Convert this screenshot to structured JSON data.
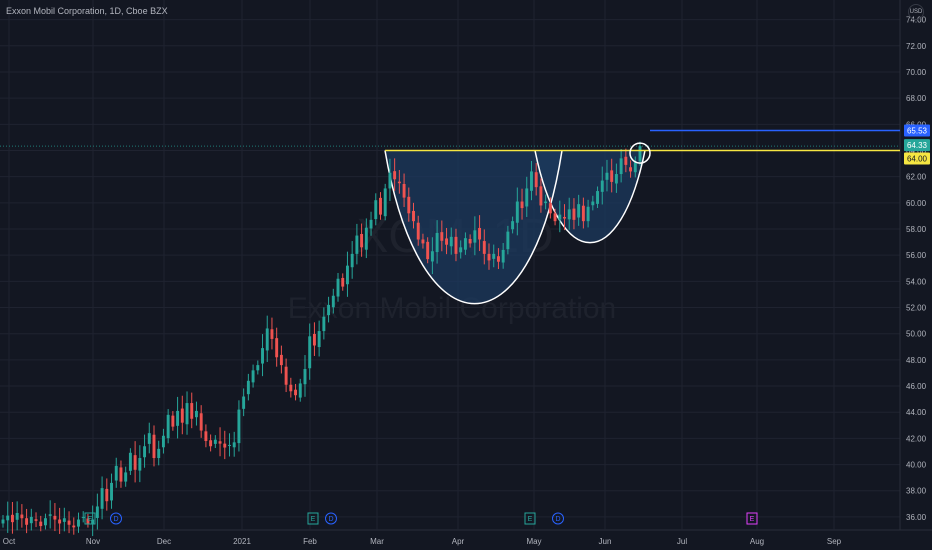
{
  "header": {
    "title": "Exxon Mobil Corporation, 1D, Cboe BZX",
    "currency": "USD"
  },
  "watermark": {
    "ticker": "XOM, 1D",
    "name": "Exxon Mobil Corporation"
  },
  "colors": {
    "background": "#131722",
    "grid": "#1f2330",
    "up": "#26a69a",
    "down": "#ef5350",
    "resistance": "#f5e642",
    "target": "#2962ff",
    "pattern_fill": "#1c3a5e",
    "pattern_outline": "#ffffff",
    "earnings": "#26a69a",
    "dividend": "#2962ff",
    "split": "#e040fb"
  },
  "price_tags": {
    "target": "65.53",
    "current": "64.33",
    "resistance": "64.00"
  },
  "events": {
    "earnings_label": "E",
    "dividend_label": "D",
    "split_label": "E"
  },
  "chart_data": {
    "type": "candlestick",
    "title": "Exxon Mobil Corporation, 1D, Cboe BZX",
    "ylabel": "USD",
    "ylim": [
      35.0,
      75.5
    ],
    "y_ticks": [
      36,
      38,
      40,
      42,
      44,
      46,
      48,
      50,
      52,
      54,
      56,
      58,
      60,
      62,
      64,
      66,
      68,
      70,
      72,
      74
    ],
    "x_tick_labels": [
      "Oct",
      "Nov",
      "Dec",
      "2021",
      "Feb",
      "Mar",
      "Apr",
      "May",
      "Jun",
      "Jul",
      "Aug",
      "Sep"
    ],
    "grid": true,
    "cup": {
      "rim": 64.0,
      "bottom": 52.6
    },
    "handle": {
      "rim": 64.0,
      "bottom": 56.9
    },
    "resistance_level": 64.0,
    "target_level": 65.53,
    "last_close": 64.33,
    "closes": [
      35.8,
      36.1,
      35.6,
      36.3,
      35.9,
      35.4,
      36.0,
      35.7,
      35.3,
      35.9,
      36.2,
      35.8,
      35.5,
      35.9,
      35.4,
      35.2,
      35.8,
      36.0,
      35.5,
      35.8,
      36.8,
      38.2,
      37.2,
      38.6,
      39.9,
      38.7,
      39.4,
      40.9,
      39.6,
      40.5,
      41.4,
      42.4,
      40.5,
      41.2,
      42.2,
      43.8,
      42.9,
      44.1,
      43.2,
      44.7,
      43.5,
      44.1,
      42.6,
      41.8,
      41.4,
      41.9,
      41.6,
      41.3,
      41.5,
      41.7,
      44.2,
      45.2,
      46.4,
      47.2,
      47.6,
      48.9,
      50.4,
      49.6,
      48.2,
      47.6,
      46.1,
      45.6,
      45.3,
      46.2,
      47.3,
      49.8,
      49.1,
      50.2,
      51.3,
      52.2,
      52.9,
      54.2,
      53.6,
      55.2,
      56.1,
      57.5,
      56.6,
      58.1,
      58.7,
      60.2,
      59.1,
      61.1,
      62.3,
      61.8,
      61.5,
      60.4,
      59.2,
      58.6,
      57.2,
      56.9,
      55.7,
      56.3,
      57.7,
      57.1,
      56.8,
      57.4,
      56.1,
      56.6,
      57.3,
      56.9,
      57.9,
      57.2,
      56.1,
      55.6,
      56.1,
      55.5,
      56.4,
      57.8,
      58.6,
      60.1,
      59.6,
      61.1,
      62.4,
      61.2,
      59.8,
      60.1,
      59.2,
      58.6,
      59.1,
      58.8,
      59.5,
      58.7,
      59.9,
      58.6,
      59.7,
      60.1,
      60.9,
      61.7,
      62.3,
      61.6,
      62.2,
      63.4,
      62.9,
      62.4,
      63.1,
      64.33
    ]
  }
}
